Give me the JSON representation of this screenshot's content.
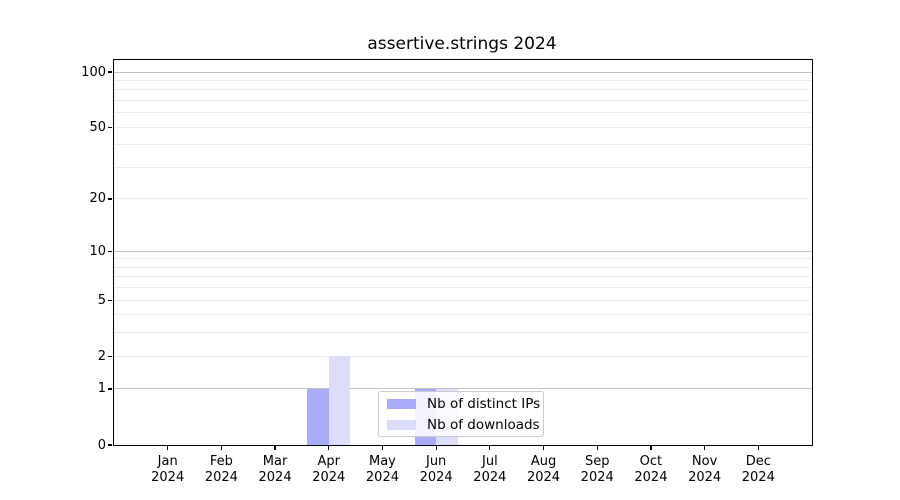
{
  "chart_data": {
    "type": "bar",
    "title": "assertive.strings 2024",
    "categories": [
      "Jan 2024",
      "Feb 2024",
      "Mar 2024",
      "Apr 2024",
      "May 2024",
      "Jun 2024",
      "Jul 2024",
      "Aug 2024",
      "Sep 2024",
      "Oct 2024",
      "Nov 2024",
      "Dec 2024"
    ],
    "x_labels": [
      {
        "line1": "Jan",
        "line2": "2024"
      },
      {
        "line1": "Feb",
        "line2": "2024"
      },
      {
        "line1": "Mar",
        "line2": "2024"
      },
      {
        "line1": "Apr",
        "line2": "2024"
      },
      {
        "line1": "May",
        "line2": "2024"
      },
      {
        "line1": "Jun",
        "line2": "2024"
      },
      {
        "line1": "Jul",
        "line2": "2024"
      },
      {
        "line1": "Aug",
        "line2": "2024"
      },
      {
        "line1": "Sep",
        "line2": "2024"
      },
      {
        "line1": "Oct",
        "line2": "2024"
      },
      {
        "line1": "Nov",
        "line2": "2024"
      },
      {
        "line1": "Dec",
        "line2": "2024"
      }
    ],
    "series": [
      {
        "name": "Nb of distinct IPs",
        "color": "#a7abf8",
        "values": [
          0,
          0,
          0,
          1,
          0,
          1,
          0,
          0,
          0,
          0,
          0,
          0
        ]
      },
      {
        "name": "Nb of downloads",
        "color": "#dbddfa",
        "values": [
          0,
          0,
          0,
          2,
          0,
          1,
          0,
          0,
          0,
          0,
          0,
          0
        ]
      }
    ],
    "yscale": "log1p",
    "ylim": [
      0,
      116
    ],
    "yticks": [
      {
        "value": 0,
        "label": "0"
      },
      {
        "value": 1,
        "label": "1"
      },
      {
        "value": 2,
        "label": "2"
      },
      {
        "value": 5,
        "label": "5"
      },
      {
        "value": 10,
        "label": "10"
      },
      {
        "value": 20,
        "label": "20"
      },
      {
        "value": 50,
        "label": "50"
      },
      {
        "value": 100,
        "label": "100"
      }
    ],
    "grid": {
      "major": [
        1,
        10,
        100
      ],
      "minor": [
        2,
        3,
        4,
        5,
        6,
        7,
        8,
        9,
        20,
        30,
        40,
        50,
        60,
        70,
        80,
        90
      ]
    },
    "legend_position": "lower-center"
  },
  "colors": {
    "grid_major": "#c4c4c4",
    "grid_minor": "#ebebeb",
    "axis": "#000000",
    "background": "#ffffff"
  }
}
